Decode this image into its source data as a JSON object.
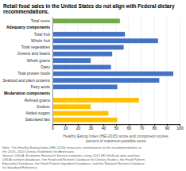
{
  "chart_data": {
    "type": "bar",
    "orientation": "horizontal",
    "title": "Retail food sales in the United States do not align with Federal dietary recommendations.",
    "categories": [
      "Total score",
      "Adequacy components",
      "Total fruit",
      "Whole fruit",
      "Total vegetables",
      "Greens and beans",
      "Whole grains",
      "Dairy",
      "Total protein foods",
      "Seafood and plant proteins",
      "Fatty acids",
      "Moderation components",
      "Refined grains",
      "Sodium",
      "Added sugars",
      "Saturated fats"
    ],
    "values": [
      53,
      null,
      57,
      83,
      56,
      47,
      30,
      46,
      95,
      84,
      51,
      null,
      68,
      30,
      44,
      51
    ],
    "colors": [
      "#70ad47",
      null,
      "#4472c4",
      "#4472c4",
      "#4472c4",
      "#4472c4",
      "#4472c4",
      "#4472c4",
      "#4472c4",
      "#4472c4",
      "#4472c4",
      null,
      "#ffc000",
      "#ffc000",
      "#ffc000",
      "#ffc000"
    ],
    "xlabel": "Healthy Eating Index (HEI-2015) score and component scores,\npercent of maximum possible score",
    "annotations": [
      "Note: The Healthy Eating Index (HEI-2015) measures conformance to the recommendations in",
      "the 2015–2020 Dietary Guidelines for Americans.",
      "Source: USDA, Economic Research Service estimates using 2013 IRI InfoScan data and four",
      "USDA nutrition databases: the Food and Nutrient Database for Dietary Studies, the Food Pattern",
      "Equivalent Database, the Food Pattern Ingredient Database, and the National Nutrient Database",
      "for Standard Reference."
    ],
    "xlim": [
      0,
      100
    ],
    "xticks": [
      0,
      10,
      20,
      30,
      40,
      50,
      60,
      70,
      80,
      90,
      100
    ],
    "grid": true
  }
}
